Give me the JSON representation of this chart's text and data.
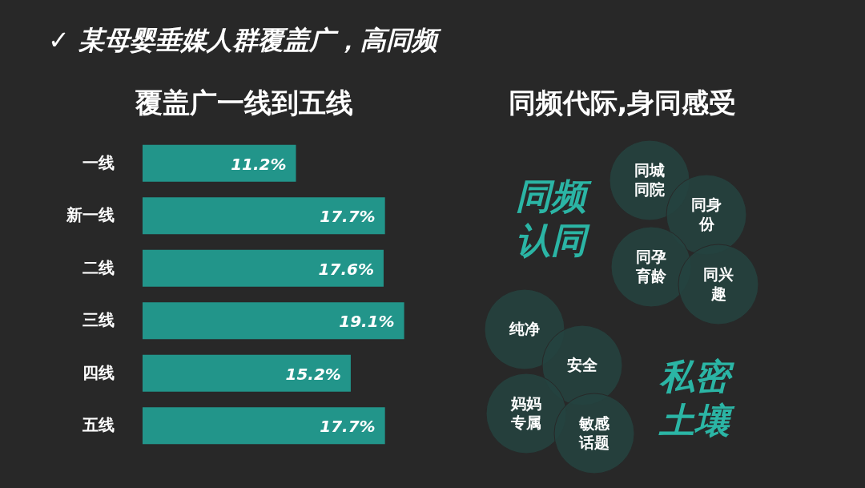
{
  "chart_data": [
    {
      "type": "bar",
      "orientation": "horizontal",
      "title": "✓ 某母婴垂媒人群覆盖广，高同频",
      "subtitle": "覆盖广一线到五线",
      "categories": [
        "一线",
        "新一线",
        "二线",
        "三线",
        "四线",
        "五线"
      ],
      "values": [
        11.2,
        17.7,
        17.6,
        19.1,
        15.2,
        17.7
      ],
      "value_labels": [
        "11.2%",
        "17.7%",
        "17.6%",
        "19.1%",
        "15.2%",
        "17.7%"
      ],
      "color": "#22958a",
      "tick_labels": "y"
    },
    {
      "type": "other",
      "title": "同频代际,身同感受",
      "annotations": [
        "同频认同",
        "同城同院",
        "同身份",
        "同孕育龄",
        "同兴趣",
        "纯净",
        "安全",
        "妈妈专属",
        "敏感话题",
        "私密土壤"
      ]
    }
  ]
}
